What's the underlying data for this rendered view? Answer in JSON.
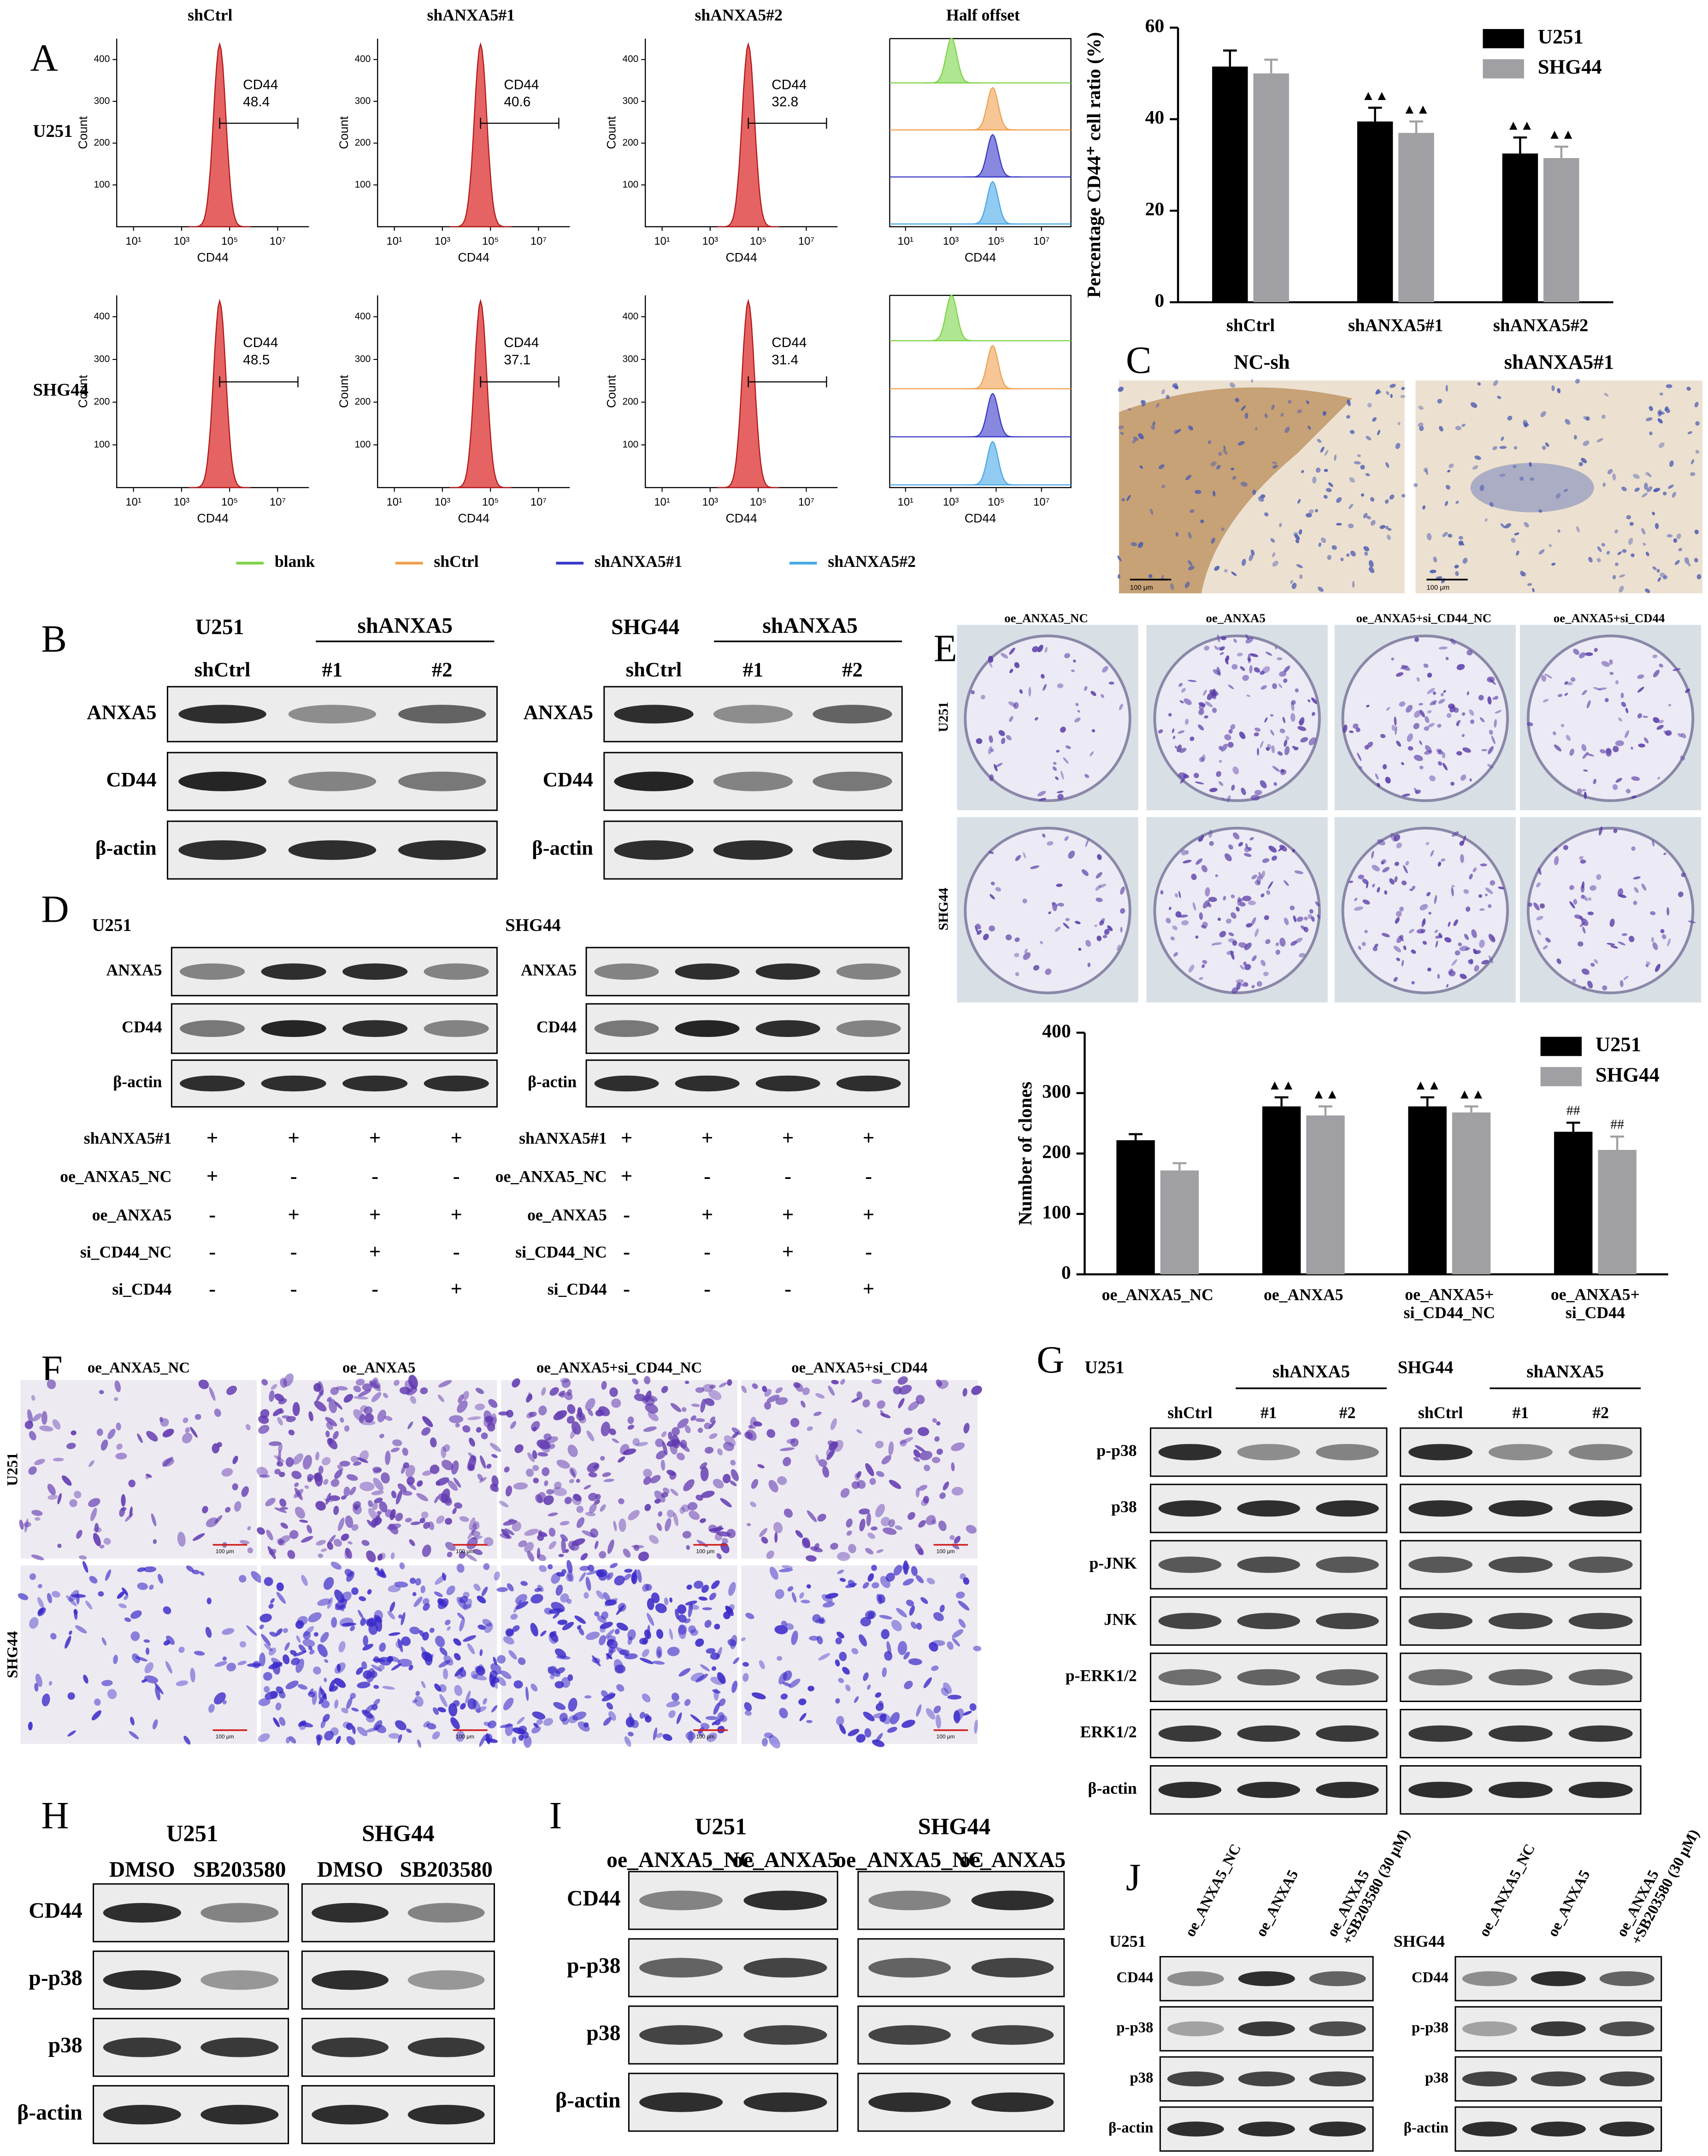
{
  "panel_labels": [
    "A",
    "B",
    "C",
    "D",
    "E",
    "F",
    "G",
    "H",
    "I",
    "J"
  ],
  "flow": {
    "columns": [
      "shCtrl",
      "shANXA5#1",
      "shANXA5#2",
      "Half offset"
    ],
    "rows": [
      "U251",
      "SHG44"
    ],
    "gate_label": "CD44",
    "x_label": "CD44",
    "y_label": "Count",
    "xscale": "log",
    "xlim": [
      2,
      200000000
    ],
    "xticks": [
      {
        "value": 10,
        "label": "10¹"
      },
      {
        "value": 1000,
        "label": "10³"
      },
      {
        "value": 100000,
        "label": "10⁵"
      },
      {
        "value": 10000000,
        "label": "10⁷"
      }
    ],
    "ylim": [
      0,
      450
    ],
    "yticks": [
      100,
      200,
      300,
      400
    ],
    "values": [
      [
        48.4,
        40.6,
        32.8
      ],
      [
        48.5,
        37.1,
        31.4
      ]
    ],
    "histogram_color": "#e04848",
    "legend": [
      {
        "name": "blank",
        "color": "#7cd448"
      },
      {
        "name": "shCtrl",
        "color": "#f0a050"
      },
      {
        "name": "shANXA5#1",
        "color": "#3838c8"
      },
      {
        "name": "shANXA5#2",
        "color": "#48a8e8"
      }
    ]
  },
  "chart_data": [
    {
      "type": "bar",
      "y_label": "Percentage CD44⁺ cell ratio (%)",
      "categories": [
        "shCtrl",
        "shANXA5#1",
        "shANXA5#2"
      ],
      "series": [
        {
          "name": "U251",
          "color": "#000000",
          "values": [
            51.5,
            39.5,
            32.5
          ],
          "errors": [
            3.5,
            3,
            3.5
          ],
          "markers": [
            null,
            "▲▲",
            "▲▲"
          ]
        },
        {
          "name": "SHG44",
          "color": "#a0a0a4",
          "values": [
            50,
            37,
            31.5
          ],
          "errors": [
            3,
            2.5,
            2.5
          ],
          "markers": [
            null,
            "▲▲",
            "▲▲"
          ]
        }
      ],
      "ylim": [
        0,
        60
      ],
      "yticks": [
        0,
        20,
        40,
        60
      ],
      "grid": false
    },
    {
      "type": "bar",
      "y_label": "Number of clones",
      "categories": [
        "oe_ANXA5_NC",
        "oe_ANXA5",
        "oe_ANXA5+\nsi_CD44_NC",
        "oe_ANXA5+\nsi_CD44"
      ],
      "series": [
        {
          "name": "U251",
          "color": "#000000",
          "values": [
            222,
            278,
            278,
            236
          ],
          "errors": [
            10,
            15,
            15,
            15
          ],
          "markers": [
            null,
            "▲▲",
            "▲▲",
            "##"
          ]
        },
        {
          "name": "SHG44",
          "color": "#a0a0a4",
          "values": [
            172,
            263,
            268,
            206
          ],
          "errors": [
            12,
            15,
            10,
            22
          ],
          "markers": [
            null,
            "▲▲",
            "▲▲",
            "##"
          ]
        }
      ],
      "ylim": [
        0,
        400
      ],
      "yticks": [
        0,
        100,
        200,
        300,
        400
      ],
      "grid": false
    }
  ],
  "ihc": {
    "titles": [
      "NC-sh",
      "shANXA5#1"
    ],
    "scale_bar": "100 μm"
  },
  "colony": {
    "columns": [
      "oe_ANXA5_NC",
      "oe_ANXA5",
      "oe_ANXA5+si_CD44_NC",
      "oe_ANXA5+si_CD44"
    ],
    "rows": [
      "U251",
      "SHG44"
    ]
  },
  "transwell": {
    "columns": [
      "oe_ANXA5_NC",
      "oe_ANXA5",
      "oe_ANXA5+si_CD44_NC",
      "oe_ANXA5+si_CD44"
    ],
    "rows": [
      "U251",
      "SHG44"
    ],
    "scale_bar": "100 μm"
  },
  "blot_B": {
    "proteins": [
      "ANXA5",
      "CD44",
      "β-actin"
    ],
    "groups": [
      {
        "cell": "U251",
        "treatment": "shANXA5",
        "lanes": [
          "shCtrl",
          "#1",
          "#2"
        ]
      },
      {
        "cell": "SHG44",
        "treatment": "shANXA5",
        "lanes": [
          "shCtrl",
          "#1",
          "#2"
        ]
      }
    ]
  },
  "blot_D": {
    "proteins": [
      "ANXA5",
      "CD44",
      "β-actin"
    ],
    "groups": [
      {
        "cell": "U251"
      },
      {
        "cell": "SHG44"
      }
    ],
    "conditions": [
      {
        "label": "shANXA5#1",
        "signs": [
          "+",
          "+",
          "+",
          "+"
        ]
      },
      {
        "label": "oe_ANXA5_NC",
        "signs": [
          "+",
          "-",
          "-",
          "-"
        ]
      },
      {
        "label": "oe_ANXA5",
        "signs": [
          "-",
          "+",
          "+",
          "+"
        ]
      },
      {
        "label": "si_CD44_NC",
        "signs": [
          "-",
          "-",
          "+",
          "-"
        ]
      },
      {
        "label": "si_CD44",
        "signs": [
          "-",
          "-",
          "-",
          "+"
        ]
      }
    ]
  },
  "blot_G": {
    "proteins": [
      "p-p38",
      "p38",
      "p-JNK",
      "JNK",
      "p-ERK1/2",
      "ERK1/2",
      "β-actin"
    ],
    "groups": [
      {
        "cell": "U251",
        "treatment": "shANXA5",
        "lanes": [
          "shCtrl",
          "#1",
          "#2"
        ]
      },
      {
        "cell": "SHG44",
        "treatment": "shANXA5",
        "lanes": [
          "shCtrl",
          "#1",
          "#2"
        ]
      }
    ]
  },
  "blot_H": {
    "proteins": [
      "CD44",
      "p-p38",
      "p38",
      "β-actin"
    ],
    "groups": [
      {
        "cell": "U251",
        "lanes": [
          "DMSO",
          "SB203580"
        ]
      },
      {
        "cell": "SHG44",
        "lanes": [
          "DMSO",
          "SB203580"
        ]
      }
    ]
  },
  "blot_I": {
    "proteins": [
      "CD44",
      "p-p38",
      "p38",
      "β-actin"
    ],
    "groups": [
      {
        "cell": "U251",
        "lanes": [
          "oe_ANXA5_NC",
          "oe_ANXA5"
        ]
      },
      {
        "cell": "SHG44",
        "lanes": [
          "oe_ANXA5_NC",
          "oe_ANXA5"
        ]
      }
    ]
  },
  "blot_J": {
    "proteins": [
      "CD44",
      "p-p38",
      "p38",
      "β-actin"
    ],
    "groups": [
      {
        "cell": "U251",
        "lanes": [
          "oe_ANXA5_NC",
          "oe_ANXA5",
          "oe_ANXA5\n+SB203580 (30 μM)"
        ]
      },
      {
        "cell": "SHG44",
        "lanes": [
          "oe_ANXA5_NC",
          "oe_ANXA5",
          "oe_ANXA5\n+SB203580 (30 μM)"
        ]
      }
    ]
  }
}
